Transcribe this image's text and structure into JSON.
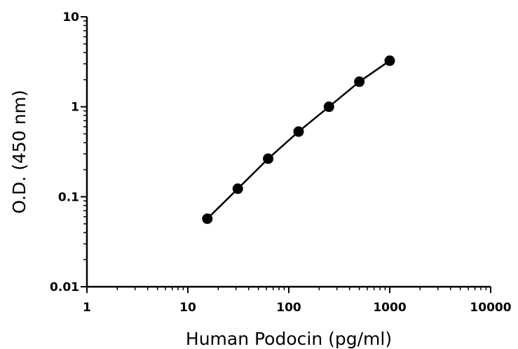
{
  "chart_data": {
    "type": "line",
    "title": "",
    "xlabel": "Human Podocin (pg/ml)",
    "ylabel": "O.D. (450 nm)",
    "xscale": "log",
    "yscale": "log",
    "xlim": [
      1,
      10000
    ],
    "ylim": [
      0.01,
      10
    ],
    "grid": false,
    "legend": "none",
    "x_ticks": [
      "1",
      "10",
      "100",
      "1000",
      "10000"
    ],
    "y_ticks": [
      "0.01",
      "0.1",
      "1",
      "10"
    ],
    "series": [
      {
        "x": [
          15.6,
          31.25,
          62.5,
          125,
          250,
          500,
          1000
        ],
        "y": [
          0.057,
          0.123,
          0.265,
          0.53,
          1.0,
          1.9,
          3.25
        ]
      }
    ],
    "colors": {
      "line": "#000000",
      "marker": "#000000"
    }
  }
}
